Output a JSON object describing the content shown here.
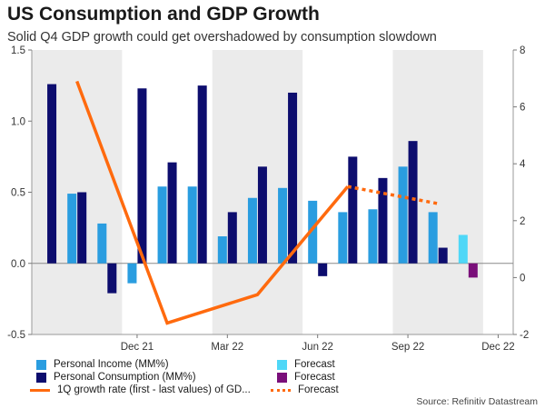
{
  "title": "US Consumption and GDP Growth",
  "subtitle": "Solid Q4 GDP growth could get overshadowed by consumption slowdown",
  "source": "Source: Refinitiv Datastream",
  "colors": {
    "income": "#2a9de0",
    "consumption": "#0d0d6e",
    "income_forecast": "#4fd7f7",
    "consumption_forecast": "#7a0f7a",
    "gdp": "#ff6a0e",
    "band": "#ebebeb"
  },
  "chart_data": {
    "type": "bar",
    "title": "US Consumption and GDP Growth",
    "x_tick_labels": [
      "Dec 21",
      "Mar 22",
      "Jun 22",
      "Sep 22",
      "Dec 22"
    ],
    "left_axis": {
      "range": [
        -0.5,
        1.5
      ],
      "ticks": [
        "1.5",
        "1.0",
        "0.5",
        "0.0",
        "-0.5"
      ],
      "values": [
        1.5,
        1.0,
        0.5,
        0.0,
        -0.5
      ]
    },
    "right_axis": {
      "range": [
        -2,
        8
      ],
      "ticks": [
        "8",
        "6",
        "4",
        "2",
        "0",
        "-2"
      ],
      "values": [
        8,
        6,
        4,
        2,
        0,
        -2
      ]
    },
    "months": [
      "Sep 21",
      "Oct 21",
      "Nov 21",
      "Dec 21",
      "Jan 22",
      "Feb 22",
      "Mar 22",
      "Apr 22",
      "May 22",
      "Jun 22",
      "Jul 22",
      "Aug 22",
      "Sep 22",
      "Oct 22",
      "Nov 22",
      "Dec 22"
    ],
    "shaded_periods": [
      [
        "Sep 21",
        "Dec 21"
      ],
      [
        "Mar 22",
        "Jun 22"
      ],
      [
        "Sep 22",
        "Dec 22"
      ]
    ],
    "series": [
      {
        "name": "Personal Income (MM%)",
        "axis": "left",
        "values": [
          null,
          0.49,
          0.28,
          -0.14,
          0.54,
          0.54,
          0.19,
          0.46,
          0.53,
          0.44,
          0.36,
          0.38,
          0.68,
          0.36,
          null,
          null
        ]
      },
      {
        "name": "Personal Consumption (MM%)",
        "axis": "left",
        "values": [
          1.26,
          0.5,
          -0.21,
          1.23,
          0.71,
          1.25,
          0.36,
          0.68,
          1.2,
          -0.09,
          0.75,
          0.6,
          0.86,
          0.11,
          null,
          null
        ]
      },
      {
        "name": "Forecast",
        "axis": "left",
        "role": "income_forecast",
        "values": [
          null,
          null,
          null,
          null,
          null,
          null,
          null,
          null,
          null,
          null,
          null,
          null,
          null,
          null,
          0.2,
          null
        ]
      },
      {
        "name": "Forecast",
        "axis": "left",
        "role": "consumption_forecast",
        "values": [
          null,
          null,
          null,
          null,
          null,
          null,
          null,
          null,
          null,
          null,
          null,
          null,
          null,
          null,
          -0.1,
          null
        ]
      }
    ],
    "gdp_line": {
      "name": "1Q growth rate (first - last values) of GD...",
      "axis": "right",
      "points": [
        [
          "Oct 21",
          6.9
        ],
        [
          "Jan 22",
          -1.6
        ],
        [
          "Apr 22",
          -0.6
        ],
        [
          "Jul 22",
          3.2
        ]
      ]
    },
    "gdp_forecast_line": {
      "name": "Forecast",
      "axis": "right",
      "points": [
        [
          "Jul 22",
          3.2
        ],
        [
          "Oct 22",
          2.6
        ]
      ]
    }
  },
  "legend": [
    {
      "label": "Personal Income (MM%)",
      "kind": "box",
      "color": "#2a9de0"
    },
    {
      "label": "Forecast",
      "kind": "box",
      "color": "#4fd7f7"
    },
    {
      "label": "Personal Consumption (MM%)",
      "kind": "box",
      "color": "#0d0d6e"
    },
    {
      "label": "Forecast",
      "kind": "box",
      "color": "#7a0f7a"
    },
    {
      "label": "1Q growth rate (first - last values) of GD...",
      "kind": "line",
      "color": "#ff6a0e"
    },
    {
      "label": "Forecast",
      "kind": "dotted",
      "color": "#ff6a0e"
    }
  ]
}
